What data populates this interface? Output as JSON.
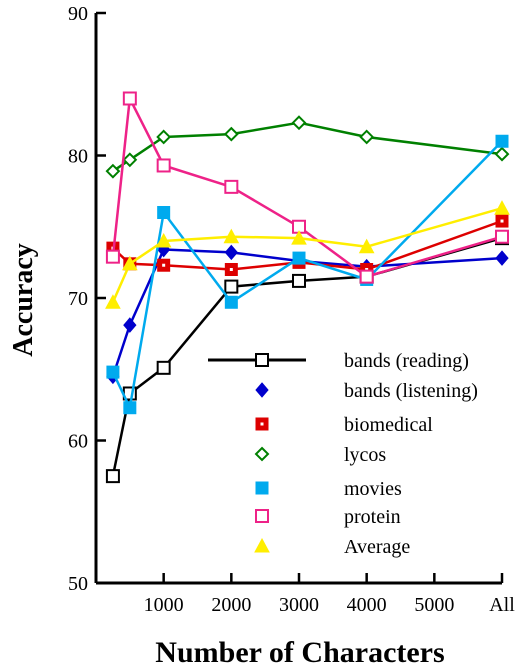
{
  "chart_data": {
    "type": "line",
    "title": "",
    "xlabel": "Number of Characters",
    "ylabel": "Accuracy",
    "xlim": [
      0,
      6000
    ],
    "ylim": [
      50,
      90
    ],
    "x_ticks": [
      {
        "value": 1000,
        "label": "1000"
      },
      {
        "value": 2000,
        "label": "2000"
      },
      {
        "value": 3000,
        "label": "3000"
      },
      {
        "value": 4000,
        "label": "4000"
      },
      {
        "value": 5000,
        "label": "5000"
      },
      {
        "value": 6000,
        "label": "All"
      }
    ],
    "y_ticks": [
      {
        "value": 50,
        "label": "50"
      },
      {
        "value": 60,
        "label": "60"
      },
      {
        "value": 70,
        "label": "70"
      },
      {
        "value": 80,
        "label": "80"
      },
      {
        "value": 90,
        "label": "90"
      }
    ],
    "grid": false,
    "legend_position": "center-right",
    "series": [
      {
        "name": "bands (reading)",
        "color": "#000000",
        "marker": "square-open",
        "points": [
          [
            250,
            57.5
          ],
          [
            500,
            63.3
          ],
          [
            1000,
            65.1
          ],
          [
            2000,
            70.8
          ],
          [
            3000,
            71.2
          ],
          [
            4000,
            71.5
          ],
          [
            6000,
            74.2
          ]
        ]
      },
      {
        "name": "bands (listening)",
        "color": "#0000cc",
        "marker": "diamond-filled",
        "points": [
          [
            250,
            64.5
          ],
          [
            500,
            68.1
          ],
          [
            1000,
            73.4
          ],
          [
            2000,
            73.2
          ],
          [
            3000,
            72.6
          ],
          [
            4000,
            72.2
          ],
          [
            6000,
            72.8
          ]
        ]
      },
      {
        "name": "biomedical",
        "color": "#dd0000",
        "marker": "square-dot",
        "points": [
          [
            250,
            73.5
          ],
          [
            500,
            72.4
          ],
          [
            1000,
            72.3
          ],
          [
            2000,
            72.0
          ],
          [
            3000,
            72.5
          ],
          [
            4000,
            72.0
          ],
          [
            6000,
            75.4
          ]
        ]
      },
      {
        "name": "lycos",
        "color": "#008000",
        "marker": "diamond-open",
        "points": [
          [
            250,
            78.9
          ],
          [
            500,
            79.7
          ],
          [
            1000,
            81.3
          ],
          [
            2000,
            81.5
          ],
          [
            3000,
            82.3
          ],
          [
            4000,
            81.3
          ],
          [
            6000,
            80.1
          ]
        ]
      },
      {
        "name": "movies",
        "color": "#00aaee",
        "marker": "square-filled",
        "points": [
          [
            250,
            64.8
          ],
          [
            500,
            62.3
          ],
          [
            1000,
            76.0
          ],
          [
            2000,
            69.7
          ],
          [
            3000,
            72.8
          ],
          [
            4000,
            71.3
          ],
          [
            6000,
            81.0
          ]
        ]
      },
      {
        "name": "protein",
        "color": "#ee2288",
        "marker": "square-open",
        "points": [
          [
            250,
            72.9
          ],
          [
            500,
            84.0
          ],
          [
            1000,
            79.3
          ],
          [
            2000,
            77.8
          ],
          [
            3000,
            75.0
          ],
          [
            4000,
            71.5
          ],
          [
            6000,
            74.3
          ]
        ]
      },
      {
        "name": "Average",
        "color": "#ffee00",
        "marker": "triangle-filled",
        "points": [
          [
            250,
            69.7
          ],
          [
            500,
            72.4
          ],
          [
            1000,
            74.0
          ],
          [
            2000,
            74.3
          ],
          [
            3000,
            74.2
          ],
          [
            4000,
            73.6
          ],
          [
            6000,
            76.3
          ]
        ]
      }
    ]
  }
}
